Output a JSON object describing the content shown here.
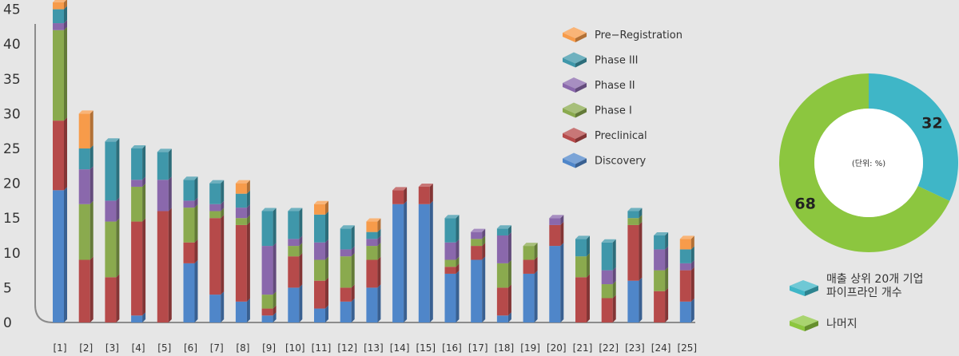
{
  "chart_data": [
    {
      "type": "bar",
      "stacked": true,
      "categories": [
        "[1]",
        "[2]",
        "[3]",
        "[4]",
        "[5]",
        "[6]",
        "[7]",
        "[8]",
        "[9]",
        "[10]",
        "[11]",
        "[12]",
        "[13]",
        "[14]",
        "[15]",
        "[16]",
        "[17]",
        "[18]",
        "[19]",
        "[20]",
        "[21]",
        "[22]",
        "[23]",
        "[24]",
        "[25]"
      ],
      "y_ticks": [
        "0",
        "5",
        "10",
        "15",
        "20",
        "25",
        "30",
        "35",
        "40",
        "45"
      ],
      "ylim": [
        0,
        45
      ],
      "legend_position": "top-right",
      "series": [
        {
          "name": "Discovery",
          "color": "#4f86c9",
          "values": [
            19,
            0,
            0,
            1,
            0,
            8.5,
            4,
            3,
            1,
            5,
            2,
            3,
            5,
            17,
            17,
            7,
            9,
            1,
            7,
            11,
            0,
            0,
            6,
            0,
            3
          ]
        },
        {
          "name": "Preclinical",
          "color": "#b64a4a",
          "values": [
            10,
            9,
            6.5,
            13.5,
            16,
            3,
            11,
            11,
            1,
            4.5,
            4,
            2,
            4,
            2,
            2.5,
            1,
            2,
            4,
            2,
            3,
            6.5,
            3.5,
            8,
            4.5,
            4.5
          ]
        },
        {
          "name": "Phase I",
          "color": "#8aaa4e",
          "values": [
            13,
            8,
            8,
            5,
            0,
            5,
            1,
            1,
            2,
            1.5,
            3,
            4.5,
            2,
            0,
            0,
            1,
            1,
            3.5,
            2,
            0,
            3,
            2,
            1,
            3,
            0
          ]
        },
        {
          "name": "Phase II",
          "color": "#8a68ac",
          "values": [
            1,
            5,
            3,
            1,
            4.5,
            1,
            1,
            1.5,
            7,
            1,
            2.5,
            1,
            1,
            0,
            0,
            2.5,
            1,
            4,
            0,
            1,
            0,
            2,
            0,
            3,
            1
          ]
        },
        {
          "name": "Phase III",
          "color": "#3f97aa",
          "values": [
            2,
            3,
            8.5,
            4.5,
            4,
            3,
            3,
            2,
            5,
            4,
            4,
            3,
            1,
            0,
            0,
            3.5,
            0,
            1,
            0,
            0,
            2.5,
            4,
            1,
            2,
            2
          ]
        },
        {
          "name": "Pre−Registration",
          "color": "#f79b4a",
          "values": [
            1,
            5,
            0,
            0,
            0,
            0,
            0,
            1.5,
            0,
            0,
            1.5,
            0,
            1.5,
            0,
            0,
            0,
            0,
            0,
            0,
            0,
            0,
            0,
            0,
            0,
            1.5
          ]
        }
      ]
    },
    {
      "type": "pie",
      "donut": true,
      "center_label": "(단위: %)",
      "slices": [
        {
          "label": "매출 상위 20개 기업 파이프라인 개수",
          "label_lines": [
            "매출 상위 20개 기업",
            "파이프라인 개수"
          ],
          "value": 32,
          "value_label": "32",
          "color": "#3fb6c7"
        },
        {
          "label": "나머지",
          "label_lines": [
            "나머지"
          ],
          "value": 68,
          "value_label": "68",
          "color": "#8cc63f"
        }
      ]
    }
  ]
}
